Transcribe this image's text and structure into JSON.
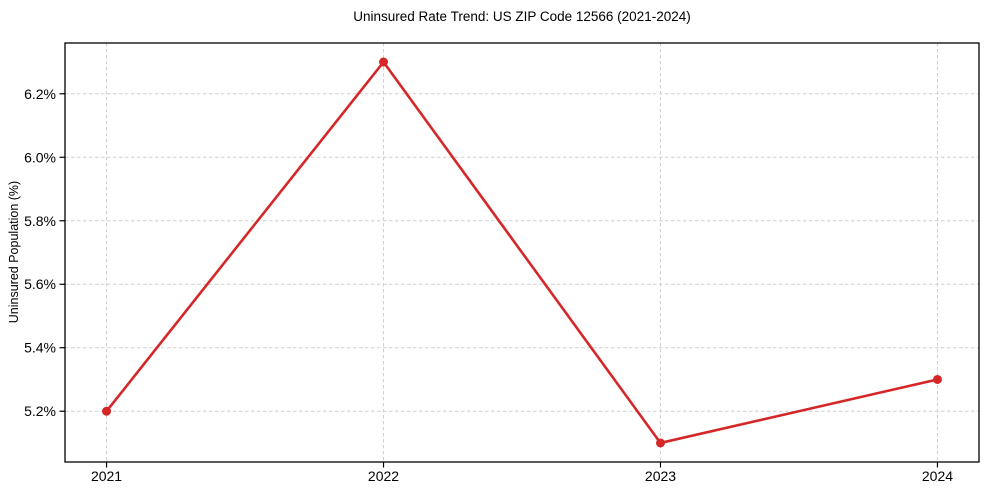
{
  "page": {
    "background": "#ffffff"
  },
  "chart_data": {
    "type": "line",
    "title": "Uninsured Rate Trend: US ZIP Code 12566 (2021-2024)",
    "xlabel": "",
    "ylabel": "Uninsured Population (%)",
    "x": [
      2021,
      2022,
      2023,
      2024
    ],
    "x_tick_labels": [
      "2021",
      "2022",
      "2023",
      "2024"
    ],
    "series": [
      {
        "name": "uninsured-rate",
        "values": [
          5.2,
          6.3,
          5.1,
          5.3
        ]
      }
    ],
    "y_ticks": [
      5.2,
      5.4,
      5.6,
      5.8,
      6.0,
      6.2
    ],
    "y_tick_labels": [
      "5.2%",
      "5.4%",
      "5.6%",
      "5.8%",
      "6.0%",
      "6.2%"
    ],
    "xlim": [
      2020.85,
      2024.15
    ],
    "ylim": [
      5.04,
      6.36
    ],
    "grid": true,
    "grid_style": "dashed",
    "legend_position": "none",
    "colors": {
      "line": "#d62728",
      "marker": "#d62728",
      "grid": "#cfcfcf",
      "spine": "#000000",
      "tick": "#000000",
      "text": "#000000",
      "background": "#ffffff"
    }
  }
}
